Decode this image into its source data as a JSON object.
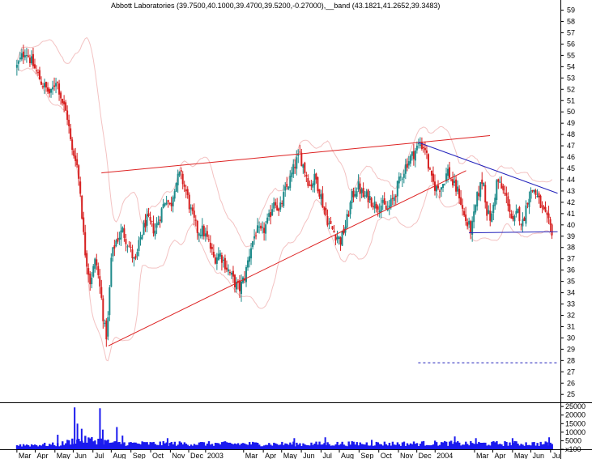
{
  "chart_data": {
    "type": "candlestick",
    "title": "Abbott Laboratories (39.7500,40.1000,39.4700,39.5200,-0.27000),__band (43.1821,41.2652,39.3483)",
    "ylim": [
      24.3,
      59.9
    ],
    "volume_ylim": [
      0,
      26500
    ],
    "price_ticks": [
      59,
      58,
      57,
      56,
      55,
      54,
      53,
      52,
      51,
      50,
      49,
      48,
      47,
      46,
      45,
      44,
      43,
      42,
      41,
      40,
      39,
      38,
      37,
      36,
      35,
      34,
      33,
      32,
      31,
      30,
      29,
      28,
      27,
      26,
      25
    ],
    "volume_ticks": [
      {
        "value": 25000,
        "label": "25000"
      },
      {
        "value": 20000,
        "label": "20000"
      },
      {
        "value": 15000,
        "label": "15000"
      },
      {
        "value": 10000,
        "label": "10000"
      },
      {
        "value": 5000,
        "label": "5000"
      },
      {
        "value": 0,
        "label": "x100"
      }
    ],
    "x_ticks": [
      {
        "label": "Mar",
        "x": 0.0
      },
      {
        "label": "Apr",
        "x": 0.65
      },
      {
        "label": "May",
        "x": 1.35
      },
      {
        "label": "Jun",
        "x": 2.0
      },
      {
        "label": "Jul",
        "x": 2.7
      },
      {
        "label": "Aug",
        "x": 3.35
      },
      {
        "label": "Sep",
        "x": 4.05
      },
      {
        "label": "Oct",
        "x": 4.75
      },
      {
        "label": "Nov",
        "x": 5.45
      },
      {
        "label": "Dec",
        "x": 6.1
      },
      {
        "label": "2003",
        "x": 6.7
      },
      {
        "label": "Mar",
        "x": 8.05
      },
      {
        "label": "Apr",
        "x": 8.75
      },
      {
        "label": "May",
        "x": 9.4
      },
      {
        "label": "Jun",
        "x": 10.1
      },
      {
        "label": "Jul",
        "x": 10.8
      },
      {
        "label": "Aug",
        "x": 11.45
      },
      {
        "label": "Sep",
        "x": 12.15
      },
      {
        "label": "Oct",
        "x": 12.85
      },
      {
        "label": "Nov",
        "x": 13.55
      },
      {
        "label": "Dec",
        "x": 14.2
      },
      {
        "label": "2004",
        "x": 14.85
      },
      {
        "label": "Mar",
        "x": 16.25
      },
      {
        "label": "Apr",
        "x": 16.9
      },
      {
        "label": "May",
        "x": 17.6
      },
      {
        "label": "Jun",
        "x": 18.25
      },
      {
        "label": "Jul",
        "x": 18.95
      }
    ],
    "x_range": [
      -0.6,
      19.3
    ],
    "price_path": [
      [
        0.0,
        54
      ],
      [
        0.3,
        55.5
      ],
      [
        0.6,
        54
      ],
      [
        0.9,
        52.5
      ],
      [
        1.2,
        51.5
      ],
      [
        1.4,
        53
      ],
      [
        1.6,
        51
      ],
      [
        1.8,
        49.5
      ],
      [
        1.95,
        46.5
      ],
      [
        2.1,
        46
      ],
      [
        2.25,
        43
      ],
      [
        2.4,
        38
      ],
      [
        2.6,
        35
      ],
      [
        2.8,
        37
      ],
      [
        3.0,
        33.5
      ],
      [
        3.1,
        31
      ],
      [
        3.2,
        30
      ],
      [
        3.35,
        37
      ],
      [
        3.5,
        38.5
      ],
      [
        3.75,
        39.5
      ],
      [
        4.0,
        38
      ],
      [
        4.2,
        36.5
      ],
      [
        4.4,
        39
      ],
      [
        4.6,
        40.5
      ],
      [
        4.9,
        39.5
      ],
      [
        5.1,
        41
      ],
      [
        5.3,
        42.5
      ],
      [
        5.45,
        41.5
      ],
      [
        5.6,
        43.5
      ],
      [
        5.8,
        44.5
      ],
      [
        6.0,
        43
      ],
      [
        6.2,
        41
      ],
      [
        6.4,
        39.5
      ],
      [
        6.6,
        39.5
      ],
      [
        6.8,
        38.5
      ],
      [
        7.0,
        37
      ],
      [
        7.2,
        37.5
      ],
      [
        7.5,
        36
      ],
      [
        7.7,
        35
      ],
      [
        7.9,
        34.3
      ],
      [
        8.1,
        35.5
      ],
      [
        8.3,
        38
      ],
      [
        8.5,
        39.5
      ],
      [
        8.7,
        39.2
      ],
      [
        8.95,
        40.5
      ],
      [
        9.15,
        42.5
      ],
      [
        9.3,
        41
      ],
      [
        9.5,
        42.8
      ],
      [
        9.7,
        44
      ],
      [
        9.9,
        45.5
      ],
      [
        10.05,
        46.2
      ],
      [
        10.2,
        45
      ],
      [
        10.4,
        43.5
      ],
      [
        10.6,
        44.2
      ],
      [
        10.8,
        42.5
      ],
      [
        10.95,
        41
      ],
      [
        11.1,
        40
      ],
      [
        11.3,
        39.2
      ],
      [
        11.5,
        38.6
      ],
      [
        11.7,
        40.2
      ],
      [
        11.9,
        42.5
      ],
      [
        12.1,
        43.5
      ],
      [
        12.3,
        42.5
      ],
      [
        12.5,
        42.5
      ],
      [
        12.7,
        41.8
      ],
      [
        12.95,
        41.8
      ],
      [
        13.15,
        41.3
      ],
      [
        13.35,
        42.2
      ],
      [
        13.6,
        44
      ],
      [
        13.85,
        45.5
      ],
      [
        14.05,
        46.2
      ],
      [
        14.3,
        47.2
      ],
      [
        14.5,
        46.8
      ],
      [
        14.7,
        44
      ],
      [
        14.9,
        43.2
      ],
      [
        15.1,
        43.5
      ],
      [
        15.3,
        44.8
      ],
      [
        15.5,
        43.5
      ],
      [
        15.7,
        42.8
      ],
      [
        15.85,
        41
      ],
      [
        16.0,
        40
      ],
      [
        16.15,
        39.6
      ],
      [
        16.35,
        42.5
      ],
      [
        16.55,
        44.2
      ],
      [
        16.7,
        41
      ],
      [
        16.85,
        40.5
      ],
      [
        17.05,
        44
      ],
      [
        17.25,
        43
      ],
      [
        17.45,
        42
      ],
      [
        17.6,
        40
      ],
      [
        17.8,
        41.2
      ],
      [
        17.95,
        40
      ],
      [
        18.15,
        42.5
      ],
      [
        18.35,
        43.2
      ],
      [
        18.55,
        42
      ],
      [
        18.8,
        40.5
      ],
      [
        19.0,
        39.5
      ]
    ],
    "volume_path": [
      [
        0.0,
        2500
      ],
      [
        1.5,
        2800
      ],
      [
        2.0,
        5000
      ],
      [
        2.5,
        5500
      ],
      [
        3.0,
        5000
      ],
      [
        3.5,
        3500
      ],
      [
        5.0,
        3300
      ],
      [
        6.5,
        3300
      ],
      [
        8.0,
        3200
      ],
      [
        10.0,
        3100
      ],
      [
        12.0,
        3300
      ],
      [
        14.0,
        3300
      ],
      [
        15.0,
        3600
      ],
      [
        16.0,
        3300
      ],
      [
        17.5,
        3400
      ],
      [
        19.0,
        3200
      ]
    ],
    "volume_spikes": [
      {
        "x": 1.45,
        "value": 8500
      },
      {
        "x": 2.05,
        "value": 24500
      },
      {
        "x": 2.15,
        "value": 15000
      },
      {
        "x": 2.3,
        "value": 12000
      },
      {
        "x": 2.95,
        "value": 24000
      },
      {
        "x": 3.05,
        "value": 11500
      },
      {
        "x": 3.55,
        "value": 13000
      },
      {
        "x": 3.75,
        "value": 8000
      },
      {
        "x": 5.35,
        "value": 6500
      },
      {
        "x": 9.85,
        "value": 6500
      },
      {
        "x": 10.95,
        "value": 7000
      },
      {
        "x": 12.6,
        "value": 5500
      },
      {
        "x": 15.55,
        "value": 7500
      },
      {
        "x": 16.3,
        "value": 6500
      },
      {
        "x": 17.6,
        "value": 6500
      },
      {
        "x": 18.9,
        "value": 7000
      }
    ],
    "trendlines": [
      {
        "color": "#dd2222",
        "points": [
          [
            3.25,
            29.3
          ],
          [
            15.95,
            44.8
          ]
        ]
      },
      {
        "color": "#dd2222",
        "points": [
          [
            3.0,
            44.6
          ],
          [
            16.8,
            47.9
          ]
        ]
      },
      {
        "color": "#2222bb",
        "points": [
          [
            14.25,
            47.3
          ],
          [
            19.2,
            42.8
          ]
        ]
      },
      {
        "color": "#2222bb",
        "points": [
          [
            16.05,
            39.3
          ],
          [
            19.2,
            39.4
          ]
        ]
      },
      {
        "color": "#2222bb",
        "dashed": true,
        "points": [
          [
            14.25,
            27.8
          ],
          [
            19.25,
            27.8
          ]
        ]
      }
    ],
    "band_color": "#f3c2c2",
    "colors": {
      "up": "#1d8a8a",
      "down": "#d62020",
      "volume": "#1a1aee",
      "border": "#000000"
    }
  }
}
